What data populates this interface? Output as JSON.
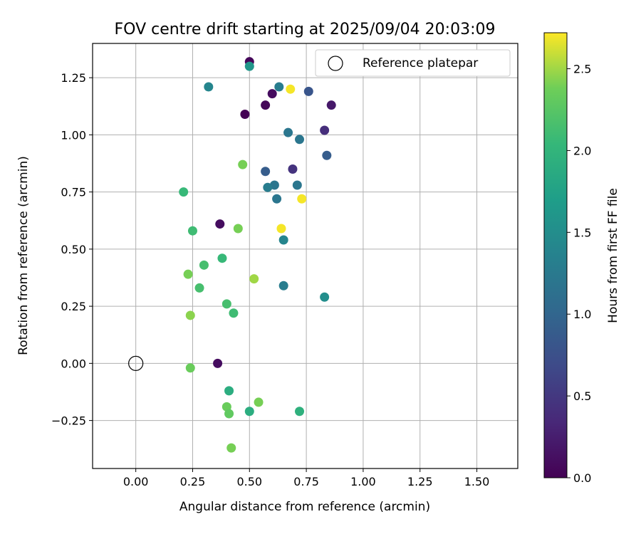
{
  "chart_data": {
    "type": "scatter",
    "title": "FOV centre drift starting at 2025/09/04 20:03:09",
    "xlabel": "Angular distance from reference (arcmin)",
    "ylabel": "Rotation from reference (arcmin)",
    "xlim": [
      -0.19,
      1.68
    ],
    "ylim": [
      -0.46,
      1.4
    ],
    "xticks": [
      "0.00",
      "0.25",
      "0.50",
      "0.75",
      "1.00",
      "1.25",
      "1.50"
    ],
    "yticks": [
      "−0.25",
      "0.00",
      "0.25",
      "0.50",
      "0.75",
      "1.00",
      "1.25"
    ],
    "grid": true,
    "legend": {
      "position": "top-right",
      "label": "Reference platepar"
    },
    "reference_point": {
      "x": 0.0,
      "y": 0.0
    },
    "colorbar": {
      "label": "Hours from first FF file",
      "colormap": "viridis",
      "range": [
        0.0,
        2.72
      ],
      "ticks": [
        "0.0",
        "0.5",
        "1.0",
        "1.5",
        "2.0",
        "2.5"
      ]
    },
    "points": [
      {
        "x": 0.5,
        "y": 1.32,
        "c": 0.05
      },
      {
        "x": 0.5,
        "y": 1.3,
        "c": 1.6
      },
      {
        "x": 0.32,
        "y": 1.21,
        "c": 1.4
      },
      {
        "x": 0.63,
        "y": 1.21,
        "c": 1.3
      },
      {
        "x": 0.68,
        "y": 1.2,
        "c": 2.7
      },
      {
        "x": 0.76,
        "y": 1.19,
        "c": 0.8
      },
      {
        "x": 0.6,
        "y": 1.18,
        "c": 0.1
      },
      {
        "x": 0.86,
        "y": 1.13,
        "c": 0.2
      },
      {
        "x": 0.57,
        "y": 1.13,
        "c": 0.05
      },
      {
        "x": 0.48,
        "y": 1.09,
        "c": 0.0
      },
      {
        "x": 0.83,
        "y": 1.02,
        "c": 0.4
      },
      {
        "x": 0.67,
        "y": 1.01,
        "c": 1.2
      },
      {
        "x": 0.72,
        "y": 0.98,
        "c": 1.2
      },
      {
        "x": 0.84,
        "y": 0.91,
        "c": 0.9
      },
      {
        "x": 0.47,
        "y": 0.87,
        "c": 2.4
      },
      {
        "x": 0.69,
        "y": 0.85,
        "c": 0.45
      },
      {
        "x": 0.57,
        "y": 0.84,
        "c": 0.9
      },
      {
        "x": 0.61,
        "y": 0.78,
        "c": 1.2
      },
      {
        "x": 0.58,
        "y": 0.77,
        "c": 1.3
      },
      {
        "x": 0.71,
        "y": 0.78,
        "c": 1.2
      },
      {
        "x": 0.21,
        "y": 0.75,
        "c": 2.05
      },
      {
        "x": 0.62,
        "y": 0.72,
        "c": 1.2
      },
      {
        "x": 0.73,
        "y": 0.72,
        "c": 2.7
      },
      {
        "x": 0.37,
        "y": 0.61,
        "c": 0.1
      },
      {
        "x": 0.45,
        "y": 0.59,
        "c": 2.4
      },
      {
        "x": 0.64,
        "y": 0.59,
        "c": 2.7
      },
      {
        "x": 0.25,
        "y": 0.58,
        "c": 2.1
      },
      {
        "x": 0.65,
        "y": 0.54,
        "c": 1.4
      },
      {
        "x": 0.38,
        "y": 0.46,
        "c": 2.05
      },
      {
        "x": 0.3,
        "y": 0.43,
        "c": 2.15
      },
      {
        "x": 0.23,
        "y": 0.39,
        "c": 2.4
      },
      {
        "x": 0.52,
        "y": 0.37,
        "c": 2.5
      },
      {
        "x": 0.28,
        "y": 0.33,
        "c": 2.15
      },
      {
        "x": 0.65,
        "y": 0.34,
        "c": 1.3
      },
      {
        "x": 0.83,
        "y": 0.29,
        "c": 1.5
      },
      {
        "x": 0.4,
        "y": 0.26,
        "c": 2.15
      },
      {
        "x": 0.43,
        "y": 0.22,
        "c": 2.1
      },
      {
        "x": 0.24,
        "y": 0.21,
        "c": 2.45
      },
      {
        "x": 0.36,
        "y": 0.0,
        "c": 0.1
      },
      {
        "x": 0.24,
        "y": -0.02,
        "c": 2.35
      },
      {
        "x": 0.41,
        "y": -0.12,
        "c": 1.9
      },
      {
        "x": 0.54,
        "y": -0.17,
        "c": 2.4
      },
      {
        "x": 0.4,
        "y": -0.19,
        "c": 2.35
      },
      {
        "x": 0.41,
        "y": -0.22,
        "c": 2.3
      },
      {
        "x": 0.5,
        "y": -0.21,
        "c": 1.9
      },
      {
        "x": 0.72,
        "y": -0.21,
        "c": 1.95
      },
      {
        "x": 0.42,
        "y": -0.37,
        "c": 2.4
      }
    ]
  }
}
